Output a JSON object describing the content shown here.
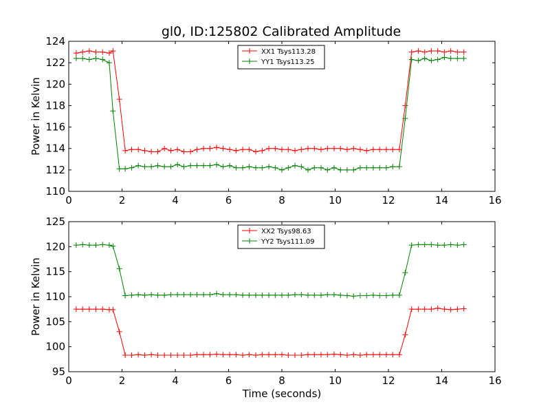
{
  "figure": {
    "title": "gl0, ID:125802 Calibrated Amplitude"
  },
  "chart_data": [
    {
      "type": "line",
      "title": "gl0, ID:125802 Calibrated Amplitude",
      "xlabel": "",
      "ylabel": "Power in Kelvin",
      "xlim": [
        0,
        16
      ],
      "ylim": [
        110,
        124
      ],
      "xticks": [
        0,
        2,
        4,
        6,
        8,
        10,
        12,
        14,
        16
      ],
      "yticks": [
        110,
        112,
        114,
        116,
        118,
        120,
        122,
        124
      ],
      "grid": false,
      "legend_position": "upper-center",
      "x": [
        0.28,
        0.52,
        0.77,
        1.02,
        1.27,
        1.52,
        1.66,
        1.9,
        2.12,
        2.36,
        2.61,
        2.85,
        3.1,
        3.34,
        3.59,
        3.83,
        4.08,
        4.32,
        4.57,
        4.81,
        5.06,
        5.3,
        5.55,
        5.79,
        6.04,
        6.28,
        6.53,
        6.77,
        7.02,
        7.26,
        7.51,
        7.75,
        8.0,
        8.24,
        8.49,
        8.73,
        8.98,
        9.22,
        9.47,
        9.71,
        9.96,
        10.2,
        10.45,
        10.69,
        10.94,
        11.18,
        11.43,
        11.67,
        11.92,
        12.16,
        12.41,
        12.63,
        12.87,
        13.12,
        13.36,
        13.61,
        13.85,
        14.1,
        14.34,
        14.59,
        14.83
      ],
      "series": [
        {
          "name": "XX1 Tsys113.28",
          "color": "#ff0000",
          "values": [
            122.9,
            123.0,
            123.1,
            123.0,
            123.0,
            122.9,
            123.1,
            118.6,
            113.8,
            113.9,
            113.9,
            113.8,
            113.7,
            113.7,
            114.0,
            113.8,
            113.9,
            113.7,
            113.7,
            113.9,
            114.0,
            114.0,
            114.1,
            114.0,
            113.9,
            113.8,
            113.9,
            113.9,
            113.7,
            113.8,
            114.0,
            114.0,
            113.9,
            113.9,
            113.8,
            113.9,
            114.0,
            114.0,
            113.9,
            114.0,
            114.0,
            114.0,
            113.9,
            114.0,
            113.9,
            113.8,
            113.9,
            113.9,
            113.9,
            113.9,
            113.9,
            118.0,
            123.0,
            123.1,
            123.0,
            123.1,
            123.1,
            123.0,
            123.1,
            123.0,
            123.0
          ]
        },
        {
          "name": "YY1 Tsys113.25",
          "color": "#008000",
          "values": [
            122.4,
            122.4,
            122.3,
            122.4,
            122.3,
            122.0,
            117.5,
            112.1,
            112.1,
            112.2,
            112.4,
            112.3,
            112.3,
            112.4,
            112.3,
            112.3,
            112.5,
            112.3,
            112.4,
            112.4,
            112.4,
            112.4,
            112.5,
            112.3,
            112.4,
            112.2,
            112.2,
            112.3,
            112.2,
            112.2,
            112.3,
            112.2,
            112.0,
            112.2,
            112.4,
            112.3,
            112.0,
            112.2,
            112.2,
            112.0,
            112.2,
            112.0,
            112.0,
            112.0,
            112.2,
            112.2,
            112.2,
            112.2,
            112.2,
            112.3,
            112.3,
            116.8,
            122.3,
            122.2,
            122.4,
            122.2,
            122.3,
            122.5,
            122.4,
            122.4,
            122.4
          ]
        }
      ]
    },
    {
      "type": "line",
      "title": "",
      "xlabel": "Time (seconds)",
      "ylabel": "Power in Kelvin",
      "xlim": [
        0,
        16
      ],
      "ylim": [
        95,
        125
      ],
      "xticks": [
        0,
        2,
        4,
        6,
        8,
        10,
        12,
        14,
        16
      ],
      "yticks": [
        95,
        100,
        105,
        110,
        115,
        120,
        125
      ],
      "grid": false,
      "legend_position": "upper-center",
      "x": [
        0.28,
        0.52,
        0.77,
        1.02,
        1.27,
        1.52,
        1.66,
        1.9,
        2.12,
        2.36,
        2.61,
        2.85,
        3.1,
        3.34,
        3.59,
        3.83,
        4.08,
        4.32,
        4.57,
        4.81,
        5.06,
        5.3,
        5.55,
        5.79,
        6.04,
        6.28,
        6.53,
        6.77,
        7.02,
        7.26,
        7.51,
        7.75,
        8.0,
        8.24,
        8.49,
        8.73,
        8.98,
        9.22,
        9.47,
        9.71,
        9.96,
        10.2,
        10.45,
        10.69,
        10.94,
        11.18,
        11.43,
        11.67,
        11.92,
        12.16,
        12.41,
        12.63,
        12.87,
        13.12,
        13.36,
        13.61,
        13.85,
        14.1,
        14.34,
        14.59,
        14.83
      ],
      "series": [
        {
          "name": "XX2 Tsys98.63",
          "color": "#ff0000",
          "values": [
            107.5,
            107.5,
            107.5,
            107.5,
            107.5,
            107.4,
            107.4,
            103.0,
            98.3,
            98.3,
            98.4,
            98.3,
            98.4,
            98.3,
            98.3,
            98.3,
            98.3,
            98.3,
            98.3,
            98.4,
            98.4,
            98.4,
            98.5,
            98.4,
            98.4,
            98.4,
            98.3,
            98.4,
            98.3,
            98.4,
            98.4,
            98.4,
            98.4,
            98.3,
            98.3,
            98.3,
            98.4,
            98.4,
            98.4,
            98.4,
            98.5,
            98.4,
            98.3,
            98.4,
            98.3,
            98.4,
            98.4,
            98.4,
            98.4,
            98.4,
            98.4,
            102.4,
            107.5,
            107.5,
            107.5,
            107.5,
            107.7,
            107.5,
            107.4,
            107.5,
            107.6
          ]
        },
        {
          "name": "YY2 Tsys111.09",
          "color": "#008000",
          "values": [
            120.3,
            120.4,
            120.3,
            120.3,
            120.4,
            120.3,
            120.1,
            115.6,
            110.2,
            110.3,
            110.4,
            110.3,
            110.4,
            110.3,
            110.3,
            110.4,
            110.4,
            110.4,
            110.4,
            110.4,
            110.4,
            110.4,
            110.6,
            110.4,
            110.4,
            110.4,
            110.3,
            110.3,
            110.3,
            110.3,
            110.3,
            110.3,
            110.3,
            110.3,
            110.4,
            110.4,
            110.3,
            110.3,
            110.3,
            110.4,
            110.4,
            110.3,
            110.2,
            110.1,
            110.2,
            110.2,
            110.3,
            110.2,
            110.2,
            110.3,
            110.3,
            114.8,
            120.3,
            120.4,
            120.4,
            120.4,
            120.3,
            120.3,
            120.4,
            120.3,
            120.4
          ]
        }
      ]
    }
  ]
}
